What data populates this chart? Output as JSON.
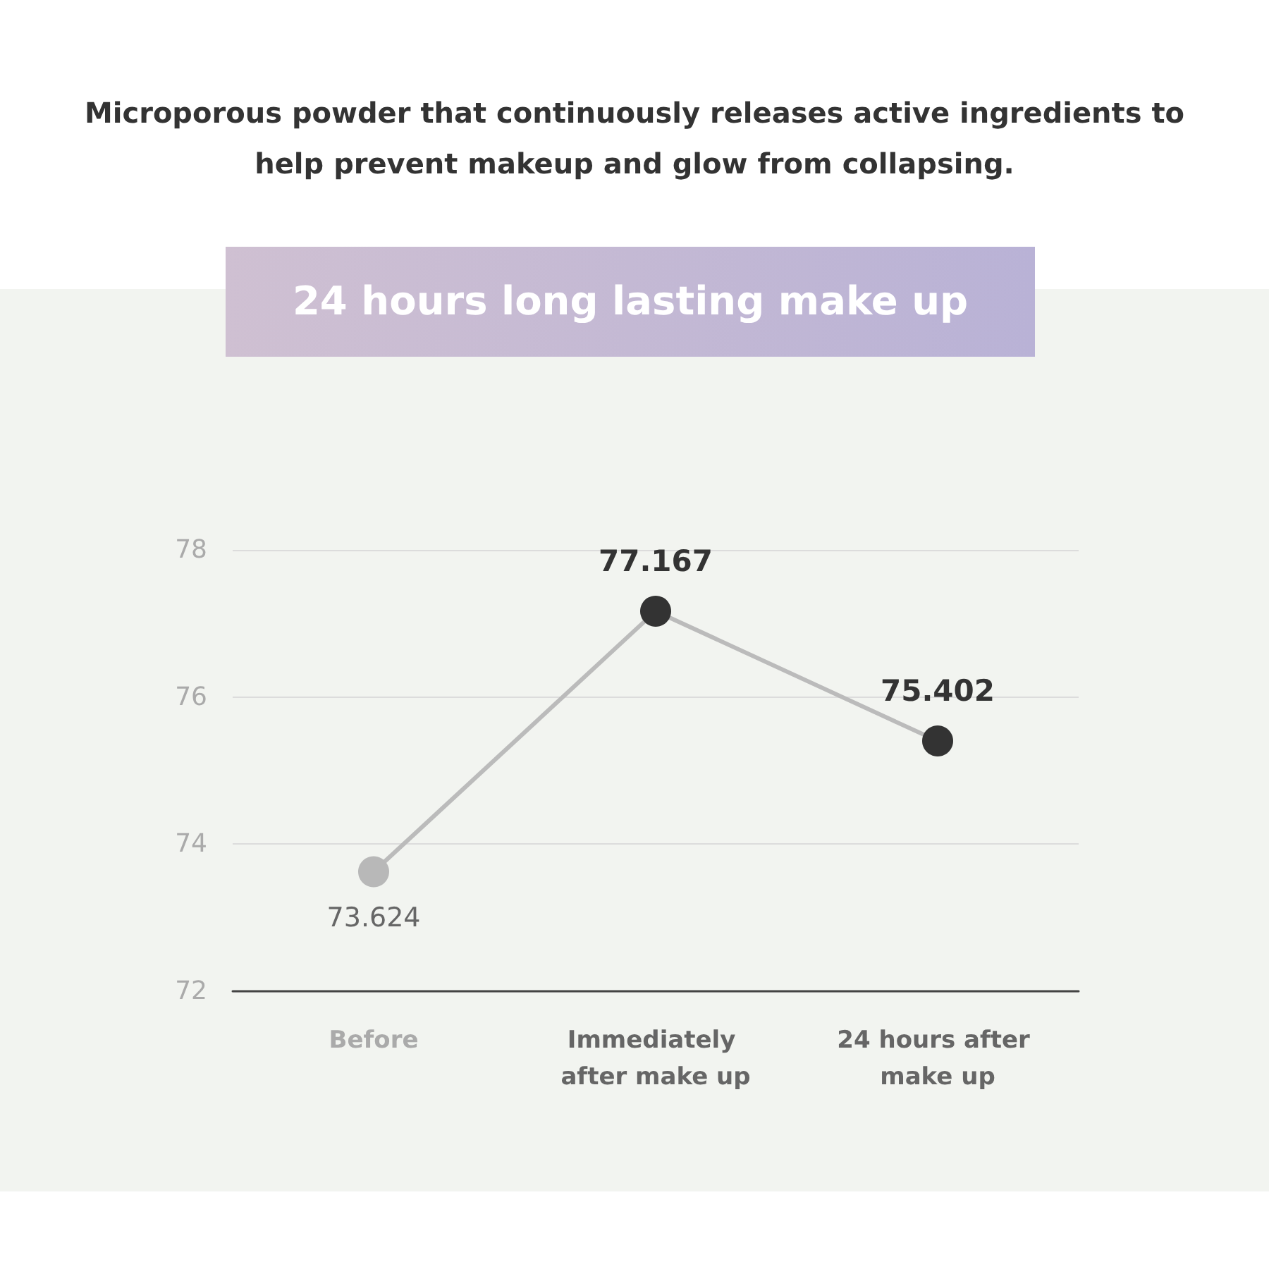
{
  "chart_data": {
    "type": "line",
    "subtitle": "Microporous powder that continuously releases active ingredients to help prevent makeup and glow from collapsing.",
    "title": "24 hours long lasting make up",
    "categories": [
      "Before",
      "Immediately after make up",
      "24 hours after make up"
    ],
    "series": [
      {
        "color": "#bbbbbb",
        "colors": [
          "#b8b8b8",
          "#333333",
          "#333333"
        ],
        "values": [
          73.624,
          77.167,
          75.402
        ]
      }
    ],
    "ylim": [
      72,
      78
    ],
    "yticks": [
      72,
      74,
      76,
      78
    ],
    "grid": "y",
    "data_labels": true,
    "marker": "circle",
    "line_style": "solid"
  }
}
